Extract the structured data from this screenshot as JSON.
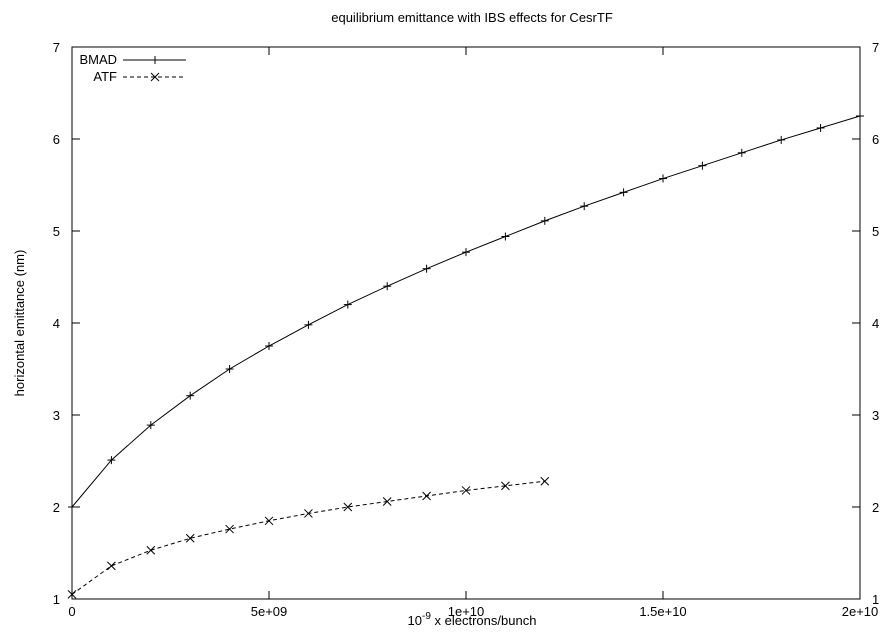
{
  "chart_data": {
    "type": "line",
    "title": "equilibrium emittance with IBS effects for CesrTF",
    "xlabel_prefix": "10",
    "xlabel_exponent": "-9",
    "xlabel_suffix": " x electrons/bunch",
    "ylabel": "horizontal emittance (nm)",
    "xlim": [
      0,
      20000000000
    ],
    "ylim": [
      1,
      7
    ],
    "x_ticks": [
      {
        "value": 0,
        "label": "0"
      },
      {
        "value": 5000000000,
        "label": "5e+09"
      },
      {
        "value": 10000000000,
        "label": "1e+10"
      },
      {
        "value": 15000000000,
        "label": "1.5e+10"
      },
      {
        "value": 20000000000,
        "label": "2e+10"
      }
    ],
    "y_ticks": [
      {
        "value": 1,
        "label": "1"
      },
      {
        "value": 2,
        "label": "2"
      },
      {
        "value": 3,
        "label": "3"
      },
      {
        "value": 4,
        "label": "4"
      },
      {
        "value": 5,
        "label": "5"
      },
      {
        "value": 6,
        "label": "6"
      },
      {
        "value": 7,
        "label": "7"
      }
    ],
    "grid": false,
    "legend_position": "top-left",
    "series": [
      {
        "name": "BMAD",
        "line_style": "solid",
        "marker": "plus",
        "color": "#000000",
        "x": [
          0,
          1000000000,
          2000000000,
          3000000000,
          4000000000,
          5000000000,
          6000000000,
          7000000000,
          8000000000,
          9000000000,
          10000000000,
          11000000000,
          12000000000,
          13000000000,
          14000000000,
          15000000000,
          16000000000,
          17000000000,
          18000000000,
          19000000000,
          20000000000
        ],
        "y": [
          2.0,
          2.51,
          2.89,
          3.21,
          3.5,
          3.75,
          3.98,
          4.2,
          4.4,
          4.59,
          4.77,
          4.94,
          5.11,
          5.27,
          5.42,
          5.57,
          5.71,
          5.85,
          5.99,
          6.12,
          6.25
        ]
      },
      {
        "name": "ATF",
        "line_style": "dashed",
        "marker": "cross",
        "color": "#000000",
        "x": [
          0,
          1000000000,
          2000000000,
          3000000000,
          4000000000,
          5000000000,
          6000000000,
          7000000000,
          8000000000,
          9000000000,
          10000000000,
          11000000000,
          12000000000
        ],
        "y": [
          1.05,
          1.36,
          1.53,
          1.66,
          1.76,
          1.85,
          1.93,
          2.0,
          2.06,
          2.12,
          2.18,
          2.23,
          2.28
        ]
      }
    ]
  }
}
